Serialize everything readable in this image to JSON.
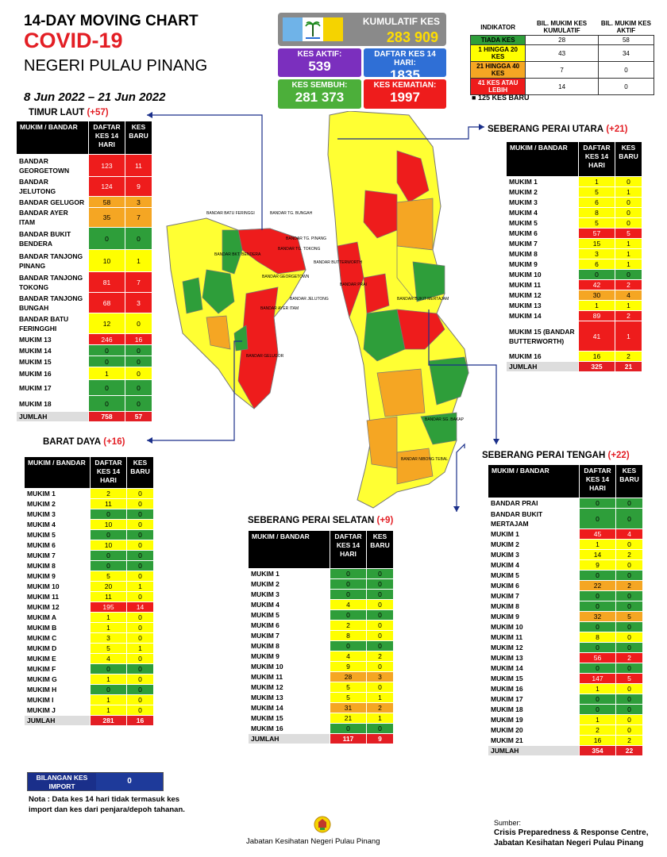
{
  "header": {
    "line1": "14-DAY MOVING CHART",
    "line2": "COVID-19",
    "line3": "NEGERI PULAU PINANG",
    "dates": "8 Jun 2022 – 21 Jun 2022"
  },
  "summary": {
    "kumulatif_label": "KUMULATIF KES",
    "kumulatif_value": "283 909",
    "aktif_label": "KES AKTIF:",
    "aktif_value": "539",
    "daftar_label": "DAFTAR KES 14 HARI:",
    "daftar_value": "1835",
    "sembuh_label": "KES SEMBUH:",
    "sembuh_value": "281 373",
    "kematian_label": "KES KEMATIAN:",
    "kematian_value": "1997"
  },
  "indicator": {
    "headers": [
      "INDIKATOR",
      "BIL. MUKIM KES KUMULATIF",
      "BIL. MUKIM KES AKTIF"
    ],
    "rows": [
      {
        "label": "TIADA KES",
        "a": "28",
        "b": "58",
        "c": "g"
      },
      {
        "label": "1 HINGGA 20 KES",
        "a": "43",
        "b": "34",
        "c": "y"
      },
      {
        "label": "21 HINGGA 40 KES",
        "a": "7",
        "b": "0",
        "c": "o"
      },
      {
        "label": "41 KES ATAU LEBIH",
        "a": "14",
        "b": "0",
        "c": "r"
      }
    ],
    "new_cases": "125 KES BARU"
  },
  "timur_laut": {
    "title": "TIMUR LAUT",
    "plus": "(+57)",
    "headers": [
      "MUKIM / BANDAR",
      "DAFTAR KES 14 HARI",
      "KES BARU"
    ],
    "rows": [
      {
        "name": "BANDAR GEORGETOWN",
        "d": "123",
        "b": "11",
        "c": "r",
        "h": 28
      },
      {
        "name": "BANDAR JELUTONG",
        "d": "124",
        "b": "9",
        "c": "r",
        "h": 20
      },
      {
        "name": "BANDAR GELUGOR",
        "d": "58",
        "b": "3",
        "c": "o",
        "h": 14
      },
      {
        "name": "BANDAR AYER ITAM",
        "d": "35",
        "b": "7",
        "c": "o",
        "h": 14
      },
      {
        "name": "BANDAR BUKIT BENDERA",
        "d": "0",
        "b": "0",
        "c": "g",
        "h": 28
      },
      {
        "name": "BANDAR TANJONG PINANG",
        "d": "10",
        "b": "1",
        "c": "y",
        "h": 28
      },
      {
        "name": "BANDAR TANJONG TOKONG",
        "d": "81",
        "b": "7",
        "c": "r",
        "h": 26
      },
      {
        "name": "BANDAR TANJONG BUNGAH",
        "d": "68",
        "b": "3",
        "c": "r",
        "h": 26
      },
      {
        "name": "BANDAR BATU FERINGGHI",
        "d": "12",
        "b": "0",
        "c": "y",
        "h": 26
      },
      {
        "name": "MUKIM 13",
        "d": "246",
        "b": "16",
        "c": "r",
        "h": 14
      },
      {
        "name": "MUKIM 14",
        "d": "0",
        "b": "0",
        "c": "g",
        "h": 14
      },
      {
        "name": "MUKIM 15",
        "d": "0",
        "b": "0",
        "c": "g",
        "h": 14
      },
      {
        "name": "MUKIM 16",
        "d": "1",
        "b": "0",
        "c": "y",
        "h": 16
      },
      {
        "name": "MUKIM 17",
        "d": "0",
        "b": "0",
        "c": "g",
        "h": 20
      },
      {
        "name": "MUKIM 18",
        "d": "0",
        "b": "0",
        "c": "g",
        "h": 20
      }
    ],
    "sum": {
      "name": "JUMLAH",
      "d": "758",
      "b": "57"
    }
  },
  "barat_daya": {
    "title": "BARAT DAYA",
    "plus": "(+16)",
    "headers": [
      "MUKIM / BANDAR",
      "DAFTAR KES 14 HARI",
      "KES BARU"
    ],
    "rows": [
      {
        "name": "MUKIM 1",
        "d": "2",
        "b": "0",
        "c": "y"
      },
      {
        "name": "MUKIM 2",
        "d": "11",
        "b": "0",
        "c": "y"
      },
      {
        "name": "MUKIM 3",
        "d": "0",
        "b": "0",
        "c": "g"
      },
      {
        "name": "MUKIM 4",
        "d": "10",
        "b": "0",
        "c": "y"
      },
      {
        "name": "MUKIM 5",
        "d": "0",
        "b": "0",
        "c": "g"
      },
      {
        "name": "MUKIM 6",
        "d": "10",
        "b": "0",
        "c": "y"
      },
      {
        "name": "MUKIM 7",
        "d": "0",
        "b": "0",
        "c": "g"
      },
      {
        "name": "MUKIM 8",
        "d": "0",
        "b": "0",
        "c": "g"
      },
      {
        "name": "MUKIM 9",
        "d": "5",
        "b": "0",
        "c": "y"
      },
      {
        "name": "MUKIM 10",
        "d": "20",
        "b": "1",
        "c": "y"
      },
      {
        "name": "MUKIM 11",
        "d": "11",
        "b": "0",
        "c": "y"
      },
      {
        "name": "MUKIM 12",
        "d": "195",
        "b": "14",
        "c": "r"
      },
      {
        "name": "MUKIM A",
        "d": "1",
        "b": "0",
        "c": "y"
      },
      {
        "name": "MUKIM B",
        "d": "1",
        "b": "0",
        "c": "y"
      },
      {
        "name": "MUKIM C",
        "d": "3",
        "b": "0",
        "c": "y"
      },
      {
        "name": "MUKIM D",
        "d": "5",
        "b": "1",
        "c": "y"
      },
      {
        "name": "MUKIM E",
        "d": "4",
        "b": "0",
        "c": "y"
      },
      {
        "name": "MUKIM F",
        "d": "0",
        "b": "0",
        "c": "g"
      },
      {
        "name": "MUKIM G",
        "d": "1",
        "b": "0",
        "c": "y"
      },
      {
        "name": "MUKIM H",
        "d": "0",
        "b": "0",
        "c": "g"
      },
      {
        "name": "MUKIM I",
        "d": "1",
        "b": "0",
        "c": "y"
      },
      {
        "name": "MUKIM J",
        "d": "1",
        "b": "0",
        "c": "y"
      }
    ],
    "sum": {
      "name": "JUMLAH",
      "d": "281",
      "b": "16"
    }
  },
  "spu": {
    "title": "SEBERANG PERAI UTARA",
    "plus": "(+21)",
    "headers": [
      "MUKIM / BANDAR",
      "DAFTAR KES 14 HARI",
      "KES BARU"
    ],
    "rows": [
      {
        "name": "MUKIM 1",
        "d": "1",
        "b": "0",
        "c": "y"
      },
      {
        "name": "MUKIM 2",
        "d": "5",
        "b": "1",
        "c": "y"
      },
      {
        "name": "MUKIM 3",
        "d": "6",
        "b": "0",
        "c": "y"
      },
      {
        "name": "MUKIM 4",
        "d": "8",
        "b": "0",
        "c": "y"
      },
      {
        "name": "MUKIM 5",
        "d": "5",
        "b": "0",
        "c": "y"
      },
      {
        "name": "MUKIM 6",
        "d": "57",
        "b": "5",
        "c": "r"
      },
      {
        "name": "MUKIM 7",
        "d": "15",
        "b": "1",
        "c": "y"
      },
      {
        "name": "MUKIM 8",
        "d": "3",
        "b": "1",
        "c": "y"
      },
      {
        "name": "MUKIM 9",
        "d": "6",
        "b": "1",
        "c": "y"
      },
      {
        "name": "MUKIM 10",
        "d": "0",
        "b": "0",
        "c": "g"
      },
      {
        "name": "MUKIM 11",
        "d": "42",
        "b": "2",
        "c": "r"
      },
      {
        "name": "MUKIM 12",
        "d": "30",
        "b": "4",
        "c": "o"
      },
      {
        "name": "MUKIM 13",
        "d": "1",
        "b": "1",
        "c": "y"
      },
      {
        "name": "MUKIM 14",
        "d": "89",
        "b": "2",
        "c": "r"
      },
      {
        "name": "MUKIM 15 (BANDAR BUTTERWORTH)",
        "d": "41",
        "b": "1",
        "c": "r",
        "h": 38
      },
      {
        "name": "MUKIM 16",
        "d": "16",
        "b": "2",
        "c": "y"
      }
    ],
    "sum": {
      "name": "JUMLAH",
      "d": "325",
      "b": "21"
    }
  },
  "spt": {
    "title": "SEBERANG PERAI TENGAH",
    "plus": "(+22)",
    "headers": [
      "MUKIM / BANDAR",
      "DAFTAR KES 14 HARI",
      "KES BARU"
    ],
    "rows": [
      {
        "name": "BANDAR PRAI",
        "d": "0",
        "b": "0",
        "c": "g"
      },
      {
        "name": "BANDAR BUKIT MERTAJAM",
        "d": "0",
        "b": "0",
        "c": "g",
        "h": 26
      },
      {
        "name": "MUKIM 1",
        "d": "45",
        "b": "4",
        "c": "r"
      },
      {
        "name": "MUKIM 2",
        "d": "1",
        "b": "0",
        "c": "y"
      },
      {
        "name": "MUKIM 3",
        "d": "14",
        "b": "2",
        "c": "y"
      },
      {
        "name": "MUKIM 4",
        "d": "9",
        "b": "0",
        "c": "y"
      },
      {
        "name": "MUKIM 5",
        "d": "0",
        "b": "0",
        "c": "g"
      },
      {
        "name": "MUKIM 6",
        "d": "22",
        "b": "2",
        "c": "o"
      },
      {
        "name": "MUKIM 7",
        "d": "0",
        "b": "0",
        "c": "g"
      },
      {
        "name": "MUKIM 8",
        "d": "0",
        "b": "0",
        "c": "g"
      },
      {
        "name": "MUKIM 9",
        "d": "32",
        "b": "5",
        "c": "o"
      },
      {
        "name": "MUKIM 10",
        "d": "0",
        "b": "0",
        "c": "g"
      },
      {
        "name": "MUKIM 11",
        "d": "8",
        "b": "0",
        "c": "y"
      },
      {
        "name": "MUKIM 12",
        "d": "0",
        "b": "0",
        "c": "g"
      },
      {
        "name": "MUKIM 13",
        "d": "56",
        "b": "2",
        "c": "r"
      },
      {
        "name": "MUKIM 14",
        "d": "0",
        "b": "0",
        "c": "g"
      },
      {
        "name": "MUKIM 15",
        "d": "147",
        "b": "5",
        "c": "r"
      },
      {
        "name": "MUKIM 16",
        "d": "1",
        "b": "0",
        "c": "y"
      },
      {
        "name": "MUKIM 17",
        "d": "0",
        "b": "0",
        "c": "g"
      },
      {
        "name": "MUKIM 18",
        "d": "0",
        "b": "0",
        "c": "g"
      },
      {
        "name": "MUKIM 19",
        "d": "1",
        "b": "0",
        "c": "y"
      },
      {
        "name": "MUKIM 20",
        "d": "2",
        "b": "0",
        "c": "y"
      },
      {
        "name": "MUKIM 21",
        "d": "16",
        "b": "2",
        "c": "y"
      }
    ],
    "sum": {
      "name": "JUMLAH",
      "d": "354",
      "b": "22"
    }
  },
  "sps": {
    "title": "SEBERANG PERAI SELATAN",
    "plus": "(+9)",
    "headers": [
      "MUKIM / BANDAR",
      "DAFTAR KES 14 HARI",
      "KES BARU"
    ],
    "rows": [
      {
        "name": "MUKIM 1",
        "d": "0",
        "b": "0",
        "c": "g"
      },
      {
        "name": "MUKIM 2",
        "d": "0",
        "b": "0",
        "c": "g"
      },
      {
        "name": "MUKIM 3",
        "d": "0",
        "b": "0",
        "c": "g"
      },
      {
        "name": "MUKIM 4",
        "d": "4",
        "b": "0",
        "c": "y"
      },
      {
        "name": "MUKIM 5",
        "d": "0",
        "b": "0",
        "c": "g"
      },
      {
        "name": "MUKIM 6",
        "d": "2",
        "b": "0",
        "c": "y"
      },
      {
        "name": "MUKIM 7",
        "d": "8",
        "b": "0",
        "c": "y"
      },
      {
        "name": "MUKIM 8",
        "d": "0",
        "b": "0",
        "c": "g"
      },
      {
        "name": "MUKIM 9",
        "d": "4",
        "b": "2",
        "c": "y"
      },
      {
        "name": "MUKIM 10",
        "d": "9",
        "b": "0",
        "c": "y"
      },
      {
        "name": "MUKIM 11",
        "d": "28",
        "b": "3",
        "c": "o"
      },
      {
        "name": "MUKIM 12",
        "d": "5",
        "b": "0",
        "c": "y"
      },
      {
        "name": "MUKIM 13",
        "d": "5",
        "b": "1",
        "c": "y"
      },
      {
        "name": "MUKIM 14",
        "d": "31",
        "b": "2",
        "c": "o"
      },
      {
        "name": "MUKIM 15",
        "d": "21",
        "b": "1",
        "c": "y"
      },
      {
        "name": "MUKIM 16",
        "d": "0",
        "b": "0",
        "c": "g"
      }
    ],
    "sum": {
      "name": "JUMLAH",
      "d": "117",
      "b": "9"
    }
  },
  "import": {
    "label": "BILANGAN KES IMPORT",
    "value": "0",
    "note": "Nota : Data kes 14 hari tidak termasuk kes import dan kes dari penjara/depoh tahanan."
  },
  "footer": {
    "center": "Jabatan Kesihatan Negeri Pulau Pinang",
    "source_label": "Sumber:",
    "source_line1": "Crisis Preparedness & Response Centre,",
    "source_line2": "Jabatan Kesihatan Negeri Pulau Pinang"
  },
  "map_labels": {
    "island": [
      "BANDAR BATU FERINGGI",
      "BANDAR TG. BUNGAH",
      "BANDAR TG. PINANG",
      "BANDAR TG. TOKONG",
      "BANDAR BKT. BENDERA",
      "BANDAR JELUTONG",
      "BANDAR AYER ITAM",
      "BANDAR GEORGETOWN",
      "BANDAR GELUGOR"
    ],
    "mainland": [
      "BANDAR BUTTERWORTH",
      "BANDAR PRAI",
      "BANDAR BUKIT MERTAJAM",
      "BANDAR SG. BAKAP",
      "BANDAR NIBONG TEBAL"
    ]
  },
  "colors": {
    "green": "#2e9e3a",
    "yellow": "#ffff00",
    "orange": "#f5a623",
    "red": "#ee1c1c",
    "purple": "#7b2fbe",
    "blue": "#2f6fd6",
    "navy": "#1a2f8a"
  }
}
